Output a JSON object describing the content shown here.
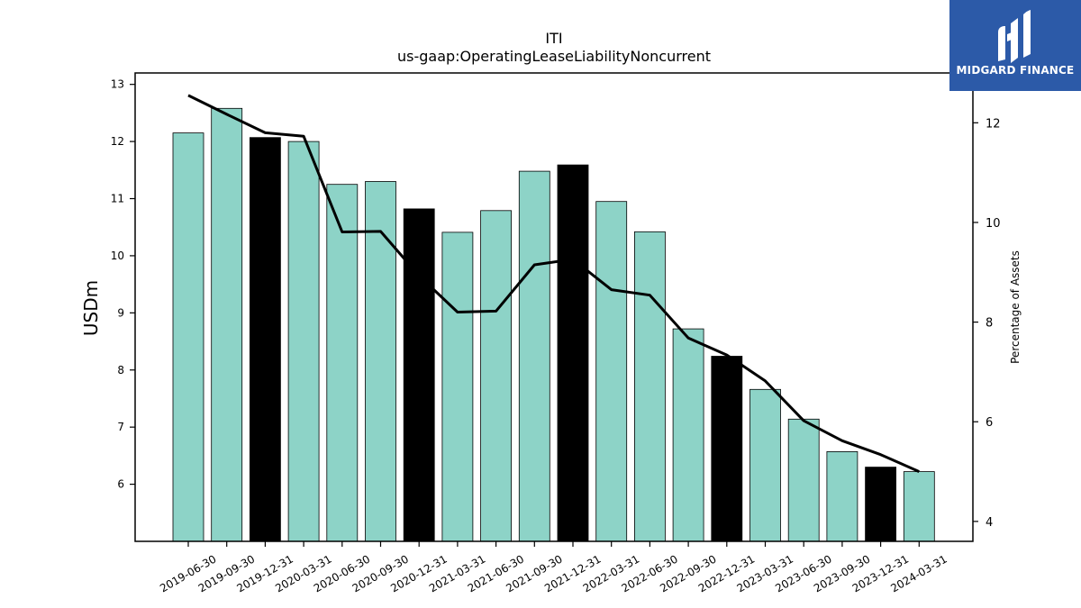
{
  "chart_data": {
    "type": "bar",
    "title": "ITI",
    "subtitle": "us-gaap:OperatingLeaseLiabilityNoncurrent",
    "ylabel": "USDm",
    "y2label": "Percentage of Assets",
    "ylim": [
      5.0,
      13.2
    ],
    "y2lim": [
      3.6,
      13.0
    ],
    "yticks": [
      6,
      7,
      8,
      9,
      10,
      11,
      12,
      13
    ],
    "y2ticks": [
      4,
      6,
      8,
      10,
      12
    ],
    "categories": [
      "2019-06-30",
      "2019-09-30",
      "2019-12-31",
      "2020-03-31",
      "2020-06-30",
      "2020-09-30",
      "2020-12-31",
      "2021-03-31",
      "2021-06-30",
      "2021-09-30",
      "2021-12-31",
      "2022-03-31",
      "2022-06-30",
      "2022-09-30",
      "2022-12-31",
      "2023-03-31",
      "2023-06-30",
      "2023-09-30",
      "2023-12-31",
      "2024-03-31"
    ],
    "series": [
      {
        "type": "bar",
        "axis": "left",
        "values": [
          12.15,
          12.58,
          12.07,
          12.0,
          11.25,
          11.3,
          10.82,
          10.41,
          10.79,
          11.48,
          11.59,
          10.95,
          10.42,
          8.72,
          8.24,
          7.66,
          7.14,
          6.57,
          6.3,
          6.22
        ],
        "colors": [
          "#8dd3c7",
          "#8dd3c7",
          "#000000",
          "#8dd3c7",
          "#8dd3c7",
          "#8dd3c7",
          "#000000",
          "#8dd3c7",
          "#8dd3c7",
          "#8dd3c7",
          "#000000",
          "#8dd3c7",
          "#8dd3c7",
          "#8dd3c7",
          "#000000",
          "#8dd3c7",
          "#8dd3c7",
          "#8dd3c7",
          "#000000",
          "#8dd3c7"
        ]
      },
      {
        "type": "line",
        "axis": "right",
        "color": "#000000",
        "values": [
          12.55,
          12.17,
          11.8,
          11.73,
          9.81,
          9.82,
          8.93,
          8.2,
          8.22,
          9.15,
          9.26,
          8.65,
          8.54,
          7.68,
          7.34,
          6.82,
          6.02,
          5.62,
          5.34,
          5.0
        ]
      }
    ],
    "bar_default_color": "#8dd3c7",
    "bar_highlight_color": "#000000",
    "grid": false,
    "legend": "none"
  },
  "logo": {
    "text": "MIDGARD FINANCE",
    "background": "#2c5aa8"
  }
}
